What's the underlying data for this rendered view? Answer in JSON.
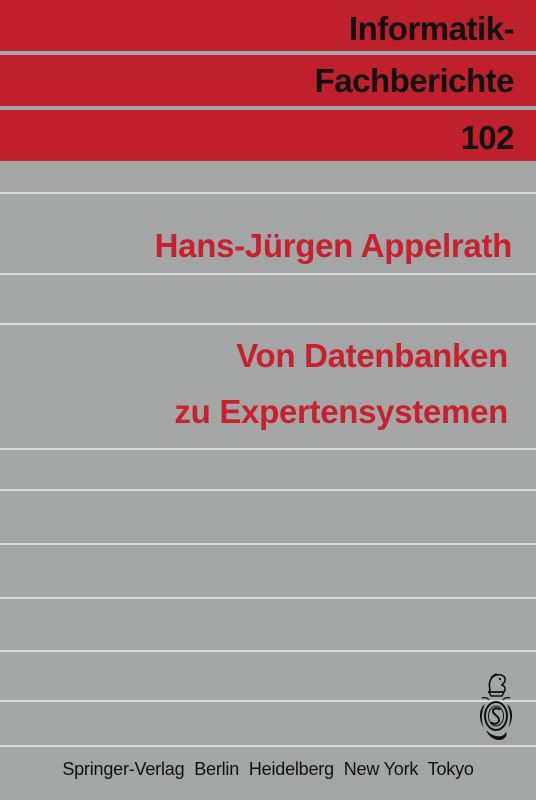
{
  "series": {
    "line1": "Informatik-",
    "line2": "Fachberichte",
    "volume": "102"
  },
  "author": "Hans-Jürgen Appelrath",
  "title": {
    "line1": "Von Datenbanken",
    "line2": "zu Expertensystemen"
  },
  "publisher": {
    "name": "Springer-Verlag",
    "cities": [
      "Berlin",
      "Heidelberg",
      "New York",
      "Tokyo"
    ]
  },
  "logo": {
    "icon": "springer-chess-knight-logo"
  },
  "colors": {
    "band_red": "#c0202c",
    "background_gray": "#a3a6a4",
    "title_red": "#c8202e",
    "rule": "#d8dad8",
    "text_dark": "#111111"
  }
}
